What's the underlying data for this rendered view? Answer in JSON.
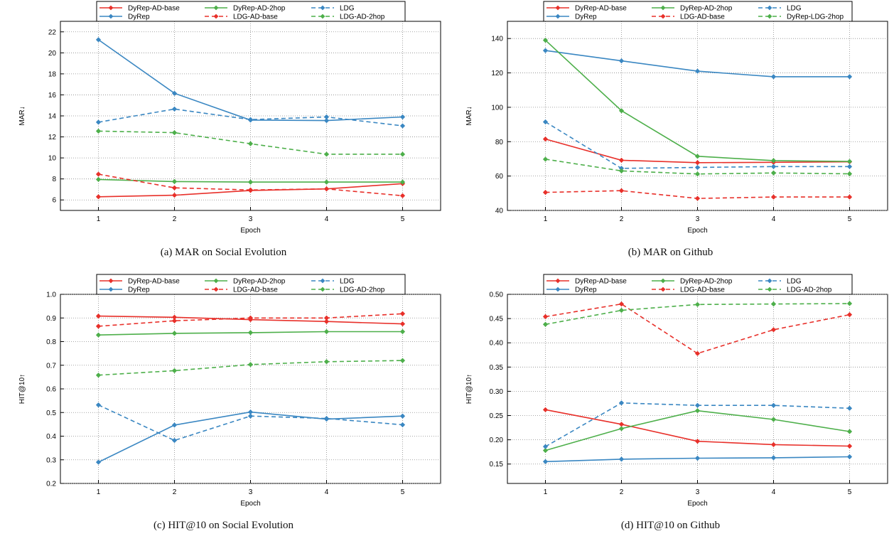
{
  "colors": {
    "red": "#e8302a",
    "blue": "#3a87c2",
    "green": "#4daf4a",
    "grid": "#8a8a8a"
  },
  "chart_data": [
    {
      "type": "line",
      "caption": "(a) MAR on Social Evolution",
      "xlabel": "Epoch",
      "ylabel": "MAR↓",
      "x": [
        1,
        2,
        3,
        4,
        5
      ],
      "xlim": [
        0.5,
        5.5
      ],
      "ylim": [
        5,
        23
      ],
      "yticks": [
        6,
        8,
        10,
        12,
        14,
        16,
        18,
        20,
        22
      ],
      "ytick_labels": [
        "6",
        "8",
        "10",
        "12",
        "14",
        "16",
        "18",
        "20",
        "22"
      ],
      "grid": true,
      "legend_position": "top",
      "series": [
        {
          "name": "DyRep-AD-base",
          "color": "#e8302a",
          "dashed": false,
          "values": [
            6.3,
            6.45,
            6.9,
            7.05,
            7.55
          ]
        },
        {
          "name": "DyRep",
          "color": "#3a87c2",
          "dashed": false,
          "values": [
            21.25,
            16.15,
            13.6,
            13.55,
            13.9
          ]
        },
        {
          "name": "DyRep-AD-2hop",
          "color": "#4daf4a",
          "dashed": false,
          "values": [
            7.95,
            7.75,
            7.7,
            7.7,
            7.7
          ]
        },
        {
          "name": "LDG-AD-base",
          "color": "#e8302a",
          "dashed": true,
          "values": [
            8.45,
            7.15,
            6.95,
            7.05,
            6.4
          ]
        },
        {
          "name": "LDG",
          "color": "#3a87c2",
          "dashed": true,
          "values": [
            13.4,
            14.65,
            13.65,
            13.9,
            13.05
          ]
        },
        {
          "name": "LDG-AD-2hop",
          "color": "#4daf4a",
          "dashed": true,
          "values": [
            12.55,
            12.4,
            11.35,
            10.35,
            10.35
          ]
        }
      ]
    },
    {
      "type": "line",
      "caption": "(b) MAR on Github",
      "xlabel": "Epoch",
      "ylabel": "MAR↓",
      "x": [
        1,
        2,
        3,
        4,
        5
      ],
      "xlim": [
        0.5,
        5.5
      ],
      "ylim": [
        40,
        150
      ],
      "yticks": [
        40,
        60,
        80,
        100,
        120,
        140
      ],
      "ytick_labels": [
        "40",
        "60",
        "80",
        "100",
        "120",
        "140"
      ],
      "grid": true,
      "legend_position": "top",
      "series": [
        {
          "name": "DyRep-AD-base",
          "color": "#e8302a",
          "dashed": false,
          "values": [
            81.5,
            69.2,
            67.8,
            68.0,
            68.3
          ]
        },
        {
          "name": "DyRep",
          "color": "#3a87c2",
          "dashed": false,
          "values": [
            133.0,
            127.0,
            121.0,
            117.8,
            117.8
          ]
        },
        {
          "name": "DyRep-AD-2hop",
          "color": "#4daf4a",
          "dashed": false,
          "values": [
            139.0,
            98.0,
            71.5,
            69.0,
            68.5
          ]
        },
        {
          "name": "LDG-AD-base",
          "color": "#e8302a",
          "dashed": true,
          "values": [
            50.5,
            51.5,
            47.0,
            47.8,
            47.8
          ]
        },
        {
          "name": "LDG",
          "color": "#3a87c2",
          "dashed": true,
          "values": [
            91.5,
            64.5,
            65.0,
            65.5,
            65.5
          ]
        },
        {
          "name": "DyRep-LDG-2hop",
          "color": "#4daf4a",
          "dashed": true,
          "values": [
            69.8,
            63.0,
            61.2,
            61.8,
            61.3
          ]
        }
      ]
    },
    {
      "type": "line",
      "caption": "(c) HIT@10 on Social Evolution",
      "xlabel": "Epoch",
      "ylabel": "HIT@10↑",
      "x": [
        1,
        2,
        3,
        4,
        5
      ],
      "xlim": [
        0.5,
        5.5
      ],
      "ylim": [
        0.2,
        1.0
      ],
      "yticks": [
        0.2,
        0.3,
        0.4,
        0.5,
        0.6,
        0.7,
        0.8,
        0.9,
        1.0
      ],
      "ytick_labels": [
        "0.2",
        "0.3",
        "0.4",
        "0.5",
        "0.6",
        "0.7",
        "0.8",
        "0.9",
        "1.0"
      ],
      "grid": true,
      "legend_position": "top",
      "series": [
        {
          "name": "DyRep-AD-base",
          "color": "#e8302a",
          "dashed": false,
          "values": [
            0.908,
            0.903,
            0.893,
            0.885,
            0.875
          ]
        },
        {
          "name": "DyRep",
          "color": "#3a87c2",
          "dashed": false,
          "values": [
            0.29,
            0.447,
            0.502,
            0.472,
            0.485
          ]
        },
        {
          "name": "DyRep-AD-2hop",
          "color": "#4daf4a",
          "dashed": false,
          "values": [
            0.828,
            0.835,
            0.838,
            0.842,
            0.842
          ]
        },
        {
          "name": "LDG-AD-base",
          "color": "#e8302a",
          "dashed": true,
          "values": [
            0.865,
            0.888,
            0.9,
            0.9,
            0.918
          ]
        },
        {
          "name": "LDG",
          "color": "#3a87c2",
          "dashed": true,
          "values": [
            0.532,
            0.382,
            0.485,
            0.475,
            0.448
          ]
        },
        {
          "name": "LDG-AD-2hop",
          "color": "#4daf4a",
          "dashed": true,
          "values": [
            0.658,
            0.677,
            0.703,
            0.715,
            0.72
          ]
        }
      ]
    },
    {
      "type": "line",
      "caption": "(d) HIT@10 on Github",
      "xlabel": "Epoch",
      "ylabel": "HIT@10↑",
      "x": [
        1,
        2,
        3,
        4,
        5
      ],
      "xlim": [
        0.5,
        5.5
      ],
      "ylim": [
        0.11,
        0.5
      ],
      "yticks": [
        0.15,
        0.2,
        0.25,
        0.3,
        0.35,
        0.4,
        0.45,
        0.5
      ],
      "ytick_labels": [
        "0.15",
        "0.20",
        "0.25",
        "0.30",
        "0.35",
        "0.40",
        "0.45",
        "0.50"
      ],
      "grid": true,
      "legend_position": "top",
      "series": [
        {
          "name": "DyRep-AD-base",
          "color": "#e8302a",
          "dashed": false,
          "values": [
            0.262,
            0.232,
            0.197,
            0.19,
            0.187
          ]
        },
        {
          "name": "DyRep",
          "color": "#3a87c2",
          "dashed": false,
          "values": [
            0.155,
            0.16,
            0.162,
            0.163,
            0.165
          ]
        },
        {
          "name": "DyRep-AD-2hop",
          "color": "#4daf4a",
          "dashed": false,
          "values": [
            0.178,
            0.223,
            0.26,
            0.242,
            0.217
          ]
        },
        {
          "name": "LDG-AD-base",
          "color": "#e8302a",
          "dashed": true,
          "values": [
            0.454,
            0.48,
            0.378,
            0.427,
            0.458
          ]
        },
        {
          "name": "LDG",
          "color": "#3a87c2",
          "dashed": true,
          "values": [
            0.186,
            0.276,
            0.271,
            0.271,
            0.265
          ]
        },
        {
          "name": "LDG-AD-2hop",
          "color": "#4daf4a",
          "dashed": true,
          "values": [
            0.438,
            0.467,
            0.479,
            0.48,
            0.481
          ]
        }
      ]
    }
  ]
}
